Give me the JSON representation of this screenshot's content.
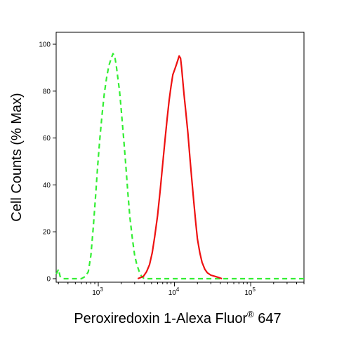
{
  "chart_data": {
    "type": "line",
    "xlabel": "Peroxiredoxin 1-Alexa Fluor",
    "xlabel_superscript": "®",
    "xlabel_suffix": " 647",
    "ylabel": "Cell Counts (% Max)",
    "x_scale": "log",
    "xlim": [
      280,
      500000
    ],
    "ylim": [
      0,
      105
    ],
    "y_ticks": [
      "0",
      "20",
      "40",
      "60",
      "80",
      "100"
    ],
    "y_tick_values": [
      0,
      20,
      40,
      60,
      80,
      100
    ],
    "x_ticks": [
      {
        "value": 1000,
        "base": "10",
        "exp": "3"
      },
      {
        "value": 10000,
        "base": "10",
        "exp": "4"
      },
      {
        "value": 100000,
        "base": "10",
        "exp": "5"
      }
    ],
    "grid": false,
    "legend": "none",
    "series": [
      {
        "color": "#33ee33",
        "style": "dashed",
        "points": [
          [
            282,
            2
          ],
          [
            300,
            4
          ],
          [
            315,
            1
          ],
          [
            340,
            0
          ],
          [
            600,
            0
          ],
          [
            680,
            1
          ],
          [
            740,
            3
          ],
          [
            800,
            10
          ],
          [
            860,
            22
          ],
          [
            920,
            35
          ],
          [
            980,
            48
          ],
          [
            1050,
            60
          ],
          [
            1120,
            70
          ],
          [
            1200,
            79
          ],
          [
            1290,
            86
          ],
          [
            1380,
            91
          ],
          [
            1480,
            94
          ],
          [
            1560,
            96
          ],
          [
            1640,
            95
          ],
          [
            1720,
            91
          ],
          [
            1800,
            86
          ],
          [
            1900,
            80
          ],
          [
            2000,
            72
          ],
          [
            2150,
            60
          ],
          [
            2300,
            48
          ],
          [
            2450,
            36
          ],
          [
            2600,
            26
          ],
          [
            2800,
            17
          ],
          [
            3000,
            10
          ],
          [
            3200,
            6
          ],
          [
            3450,
            3
          ],
          [
            3700,
            1
          ],
          [
            4000,
            0
          ],
          [
            500000,
            0
          ]
        ]
      },
      {
        "color": "#ee1111",
        "style": "solid",
        "points": [
          [
            3300,
            0
          ],
          [
            3900,
            1
          ],
          [
            4300,
            3
          ],
          [
            4700,
            6
          ],
          [
            5100,
            11
          ],
          [
            5500,
            18
          ],
          [
            6000,
            27
          ],
          [
            6500,
            38
          ],
          [
            7000,
            49
          ],
          [
            7500,
            59
          ],
          [
            8000,
            68
          ],
          [
            8500,
            76
          ],
          [
            9000,
            82
          ],
          [
            9500,
            87
          ],
          [
            10000,
            89
          ],
          [
            10500,
            91
          ],
          [
            11000,
            93
          ],
          [
            11500,
            95
          ],
          [
            12000,
            94
          ],
          [
            12400,
            90
          ],
          [
            12800,
            85
          ],
          [
            13300,
            79
          ],
          [
            14000,
            72
          ],
          [
            15000,
            62
          ],
          [
            16000,
            51
          ],
          [
            17000,
            41
          ],
          [
            18000,
            32
          ],
          [
            19000,
            24
          ],
          [
            20000,
            17
          ],
          [
            21500,
            11
          ],
          [
            23000,
            7
          ],
          [
            25000,
            4
          ],
          [
            27000,
            2.5
          ],
          [
            30000,
            1.5
          ],
          [
            34000,
            1
          ],
          [
            38000,
            0.5
          ],
          [
            42000,
            0
          ]
        ]
      }
    ]
  }
}
